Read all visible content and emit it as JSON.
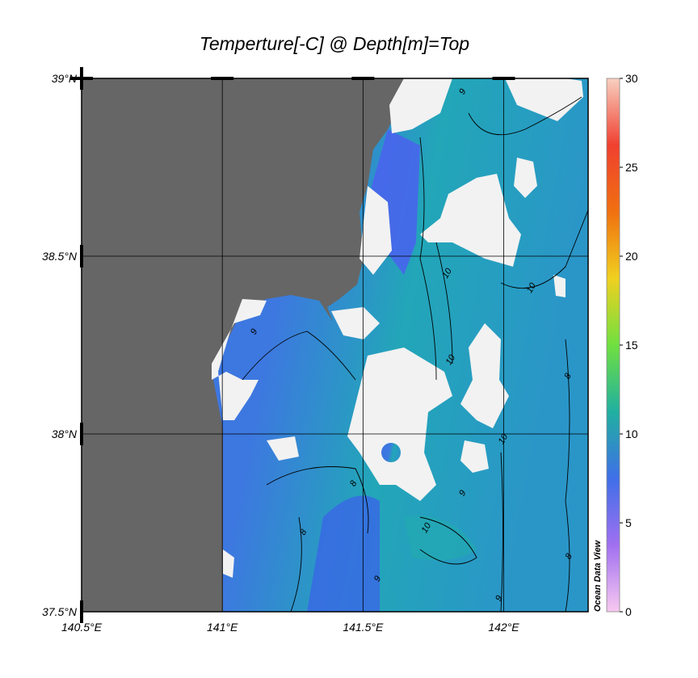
{
  "chart_data": {
    "type": "map",
    "title": "Temperture[-C] @ Depth[m]=Top",
    "watermark": "Ocean Data View",
    "xlim": [
      140.5,
      142.3
    ],
    "ylim": [
      37.5,
      39
    ],
    "xticks": [
      {
        "value": 140.5,
        "label": "140.5°E"
      },
      {
        "value": 141,
        "label": "141°E"
      },
      {
        "value": 141.5,
        "label": "141.5°E"
      },
      {
        "value": 142,
        "label": "142°E"
      }
    ],
    "yticks": [
      {
        "value": 37.5,
        "label": "37.5°N"
      },
      {
        "value": 38,
        "label": "38°N"
      },
      {
        "value": 38.5,
        "label": "38.5°N"
      },
      {
        "value": 39,
        "label": "39°N"
      }
    ],
    "grid": true,
    "colorbar": {
      "lim": [
        0,
        30
      ],
      "ticks": [
        0,
        5,
        10,
        15,
        20,
        25,
        30
      ],
      "colormap": [
        "#f8c8f0",
        "#a070f0",
        "#3f6fe8",
        "#20b0a0",
        "#70e040",
        "#f0d020",
        "#f07010",
        "#f04030",
        "#f8d0c0"
      ]
    },
    "contour_labels": [
      {
        "x": 141.121,
        "y": 38.284,
        "value": 9
      },
      {
        "x": 141.807,
        "y": 38.448,
        "value": 10
      },
      {
        "x": 142.106,
        "y": 38.407,
        "value": 10
      },
      {
        "x": 141.819,
        "y": 38.205,
        "value": 10
      },
      {
        "x": 141.474,
        "y": 37.857,
        "value": 8
      },
      {
        "x": 141.296,
        "y": 37.72,
        "value": 8
      },
      {
        "x": 142.006,
        "y": 37.982,
        "value": 10
      },
      {
        "x": 141.733,
        "y": 37.732,
        "value": 10
      },
      {
        "x": 142.236,
        "y": 38.159,
        "value": 8
      },
      {
        "x": 141.862,
        "y": 38.959,
        "value": 9
      },
      {
        "x": 141.862,
        "y": 37.83,
        "value": 9
      },
      {
        "x": 141.56,
        "y": 37.589,
        "value": 9
      },
      {
        "x": 141.991,
        "y": 37.534,
        "value": 9
      },
      {
        "x": 142.239,
        "y": 37.652,
        "value": 8
      }
    ]
  }
}
